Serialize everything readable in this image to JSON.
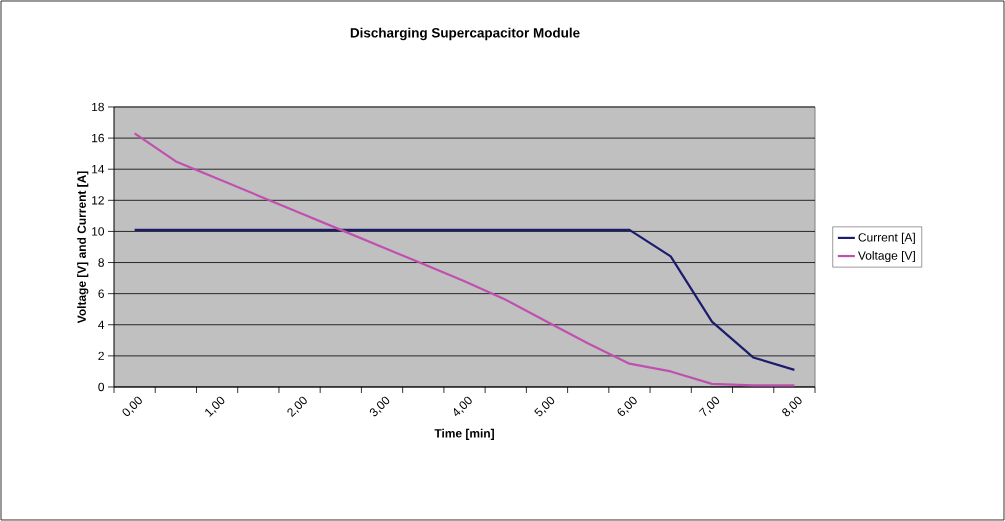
{
  "chart_data": {
    "type": "line",
    "title": "Discharging Supercapacitor Module",
    "xlabel": "Time [min]",
    "ylabel": "Voltage [V] and Current [A]",
    "categories": [
      "0,00",
      null,
      "1,00",
      null,
      "2,00",
      null,
      "3,00",
      null,
      "4,00",
      null,
      "5,00",
      null,
      "6,00",
      null,
      "7,00",
      null,
      "8,00"
    ],
    "series": [
      {
        "name": "Current [A]",
        "color": "#1c1c6e",
        "values": [
          10.1,
          10.1,
          10.1,
          10.1,
          10.1,
          10.1,
          10.1,
          10.1,
          10.1,
          10.1,
          10.1,
          10.1,
          10.1,
          8.4,
          4.2,
          1.9,
          1.1
        ]
      },
      {
        "name": "Voltage [V]",
        "color": "#c050b0",
        "values": [
          16.3,
          14.5,
          13.4,
          12.3,
          11.2,
          10.1,
          9.0,
          7.9,
          6.8,
          5.6,
          4.2,
          2.8,
          1.5,
          1.0,
          0.2,
          0.1,
          0.1
        ]
      }
    ],
    "ylim": [
      0,
      18
    ],
    "yticks": [
      0,
      2,
      4,
      6,
      8,
      10,
      12,
      14,
      16,
      18
    ],
    "grid": "y",
    "legend": "right",
    "line_style": "solid"
  }
}
